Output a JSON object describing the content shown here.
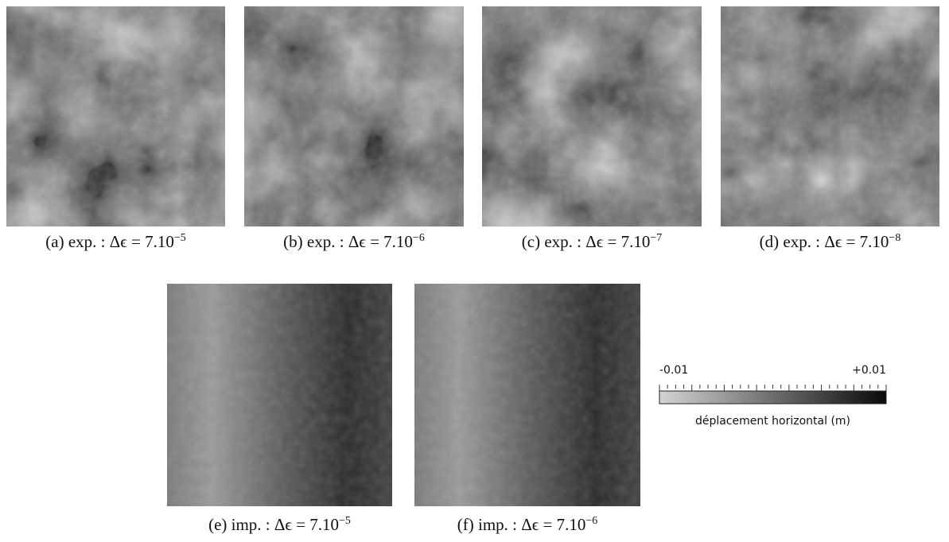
{
  "panels": [
    {
      "caption": "(a) exp. : Δϵ = 7.10",
      "exponent": "−5"
    },
    {
      "caption": "(b) exp. : Δϵ = 7.10",
      "exponent": "−6"
    },
    {
      "caption": "(c) exp. : Δϵ = 7.10",
      "exponent": "−7"
    },
    {
      "caption": "(d) exp. : Δϵ = 7.10",
      "exponent": "−8"
    },
    {
      "caption": "(e) imp. : Δϵ = 7.10",
      "exponent": "−5"
    },
    {
      "caption": "(f) imp. : Δϵ = 7.10",
      "exponent": "−6"
    }
  ],
  "colorbar": {
    "min_label": "-0.01",
    "max_label": "+0.01",
    "title": "déplacement horizontal (m)"
  }
}
